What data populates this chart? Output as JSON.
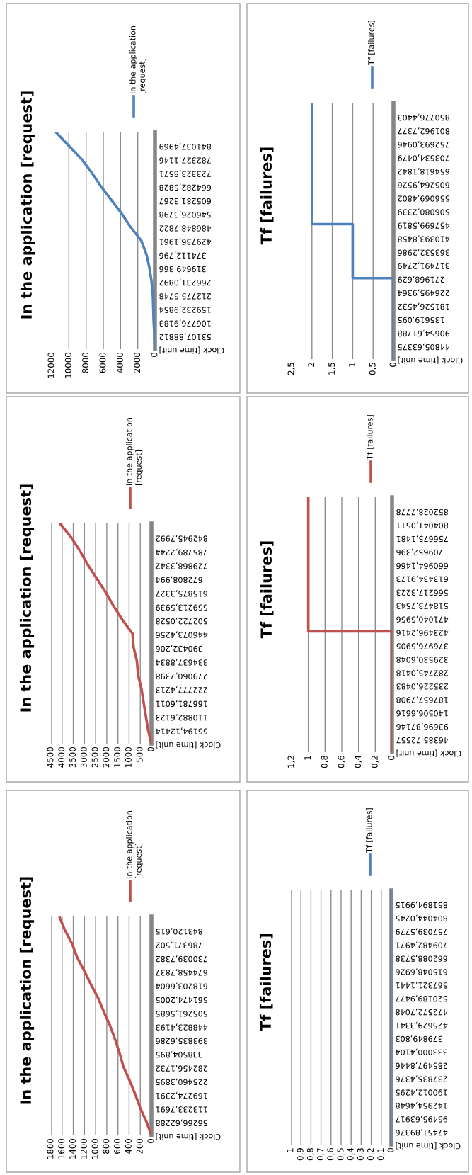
{
  "chart_data": [
    {
      "type": "line",
      "title": "In the application [request]",
      "orientation": "horizontal",
      "legend": "top",
      "grid": "x",
      "xlim": [
        12000,
        0
      ],
      "xticks": [
        0,
        2000,
        4000,
        6000,
        8000,
        10000,
        12000
      ],
      "categories": [
        null,
        "841037,4969",
        "782327,1146",
        "723323,8571",
        "664282,5828",
        "605281,3267",
        "546026,3798",
        "486848,7822",
        "429736,1961",
        "374112,796",
        "319649,366",
        "266231,0892",
        "212775,5748",
        "159232,9854",
        "106776,9183",
        "53107,88812",
        "Clock [time unit]"
      ],
      "series": [
        {
          "name": "In the application [request]",
          "color": "#4f81bd",
          "values": [
            11550,
            10050,
            8550,
            7350,
            6300,
            5100,
            3900,
            2850,
            1600,
            1000,
            650,
            400,
            250,
            200,
            150,
            50,
            0
          ]
        }
      ]
    },
    {
      "type": "step",
      "title": "Tf [failures]",
      "orientation": "horizontal",
      "legend": "top",
      "grid": "x",
      "xlim": [
        2.5,
        0
      ],
      "xticks": [
        0,
        {
          "value": 0.5,
          "label": "0,5"
        },
        1,
        {
          "value": 1.5,
          "label": "1,5"
        },
        2,
        {
          "value": 2.5,
          "label": "2,5"
        }
      ],
      "categories": [
        null,
        "850776,4403",
        "801962,7377",
        "752693,0946",
        "703534,0479",
        "654618,1842",
        "605264,9526",
        "556069,4802",
        "506080,2339",
        "457699,5819",
        "410393,8458",
        "363532,2986",
        "317491,2749",
        "271968,629",
        "226495,9364",
        "181526,4532",
        "135619,095",
        "90654,61788",
        "44805,63375",
        "Clock [time unit]"
      ],
      "series": [
        {
          "name": "Tf [failures]",
          "color": "#4f81bd",
          "values": [
            2,
            2,
            2,
            2,
            2,
            2,
            2,
            2,
            2,
            2,
            1,
            1,
            1,
            1,
            0,
            0,
            0,
            0,
            0,
            0
          ]
        }
      ]
    },
    {
      "type": "line",
      "title": "In the application [request]",
      "orientation": "horizontal",
      "legend": "top",
      "grid": "x",
      "xlim": [
        4500,
        0
      ],
      "xticks": [
        0,
        500,
        1000,
        1500,
        2000,
        2500,
        3000,
        3500,
        4000,
        4500
      ],
      "categories": [
        null,
        "842945,7992",
        "785789,2244",
        "729868,3342",
        "672808,994",
        "615875,3327",
        "559213,5939",
        "502722,0528",
        "446073,4256",
        "390432,206",
        "334637,8834",
        "279060,7398",
        "222777,4213",
        "166781,6011",
        "110882,6123",
        "55194,12414",
        "Clock [time unit]"
      ],
      "series": [
        {
          "name": "In the application [request]",
          "color": "#c0504d",
          "values": [
            4100,
            3600,
            3200,
            2850,
            2450,
            2050,
            1700,
            1300,
            850,
            800,
            650,
            600,
            450,
            350,
            250,
            150,
            0
          ]
        }
      ]
    },
    {
      "type": "step",
      "title": "Tf [failures]",
      "orientation": "horizontal",
      "legend": "top",
      "grid": "x",
      "xlim": [
        1.2,
        0
      ],
      "xticks": [
        0,
        {
          "value": 0.2,
          "label": "0,2"
        },
        {
          "value": 0.4,
          "label": "0,4"
        },
        {
          "value": 0.6,
          "label": "0,6"
        },
        {
          "value": 0.8,
          "label": "0,8"
        },
        1,
        {
          "value": 1.2,
          "label": "1,2"
        }
      ],
      "categories": [
        null,
        "852028,7778",
        "804041,0511",
        "756675,1481",
        "709652,396",
        "660964,1466",
        "613434,9173",
        "566217,3223",
        "518473,7543",
        "471040,5956",
        "423496,2416",
        "376976,5905",
        "329530,6048",
        "282745,0418",
        "235226,0483",
        "187657,7908",
        "140506,6616",
        "93696,87146",
        "46385,72557",
        "Clock [time unit]"
      ],
      "series": [
        {
          "name": "Tf [failures]",
          "color": "#c0504d",
          "values": [
            1,
            1,
            1,
            1,
            1,
            1,
            1,
            1,
            1,
            1,
            1,
            0,
            0,
            0,
            0,
            0,
            0,
            0,
            0,
            0
          ]
        }
      ]
    },
    {
      "type": "line",
      "title": "In the application [request]",
      "orientation": "horizontal",
      "legend": "top",
      "grid": "x",
      "xlim": [
        1800,
        0
      ],
      "xticks": [
        0,
        200,
        400,
        600,
        800,
        1000,
        1200,
        1400,
        1600,
        1800
      ],
      "categories": [
        null,
        "843120,615",
        "786371,502",
        "730039,7382",
        "674458,7837",
        "618203,6604",
        "561474,2005",
        "505261,5685",
        "448823,4193",
        "393835,6286",
        "338504,895",
        "282456,1732",
        "225460,3895",
        "169274,2391",
        "113233,7691",
        "56266,62288",
        "Clock [time unit]"
      ],
      "series": [
        {
          "name": "In the application [request]",
          "color": "#c0504d",
          "values": [
            1650,
            1550,
            1420,
            1330,
            1200,
            1080,
            950,
            850,
            740,
            650,
            570,
            500,
            390,
            290,
            200,
            90,
            0
          ]
        }
      ]
    },
    {
      "type": "step",
      "title": "Tf [failures]",
      "orientation": "horizontal",
      "legend": "top",
      "grid": "x",
      "xlim": [
        1,
        0
      ],
      "xticks": [
        0,
        {
          "value": 0.1,
          "label": "0,1"
        },
        {
          "value": 0.2,
          "label": "0,2"
        },
        {
          "value": 0.3,
          "label": "0,3"
        },
        {
          "value": 0.4,
          "label": "0,4"
        },
        {
          "value": 0.5,
          "label": "0,5"
        },
        {
          "value": 0.6,
          "label": "0,6"
        },
        {
          "value": 0.7,
          "label": "0,7"
        },
        {
          "value": 0.8,
          "label": "0,8"
        },
        {
          "value": 0.9,
          "label": "0,9"
        },
        1
      ],
      "categories": [
        null,
        "851894,9915",
        "804044,0245",
        "757039,5779",
        "709482,4971",
        "662088,5738",
        "615048,6926",
        "567321,1441",
        "520189,9477",
        "472572,7048",
        "425629,3341",
        "379849,803",
        "333000,4104",
        "285497,8446",
        "237835,4376",
        "190012,4295",
        "142954,4648",
        "95495,63917",
        "47451,89376",
        "Clock [time unit]"
      ],
      "series": [
        {
          "name": "Tf [failures]",
          "color": "#4f81bd",
          "values": [
            0,
            0,
            0,
            0,
            0,
            0,
            0,
            0,
            0,
            0,
            0,
            0,
            0,
            0,
            0,
            0,
            0,
            0,
            0,
            0
          ]
        }
      ]
    }
  ]
}
